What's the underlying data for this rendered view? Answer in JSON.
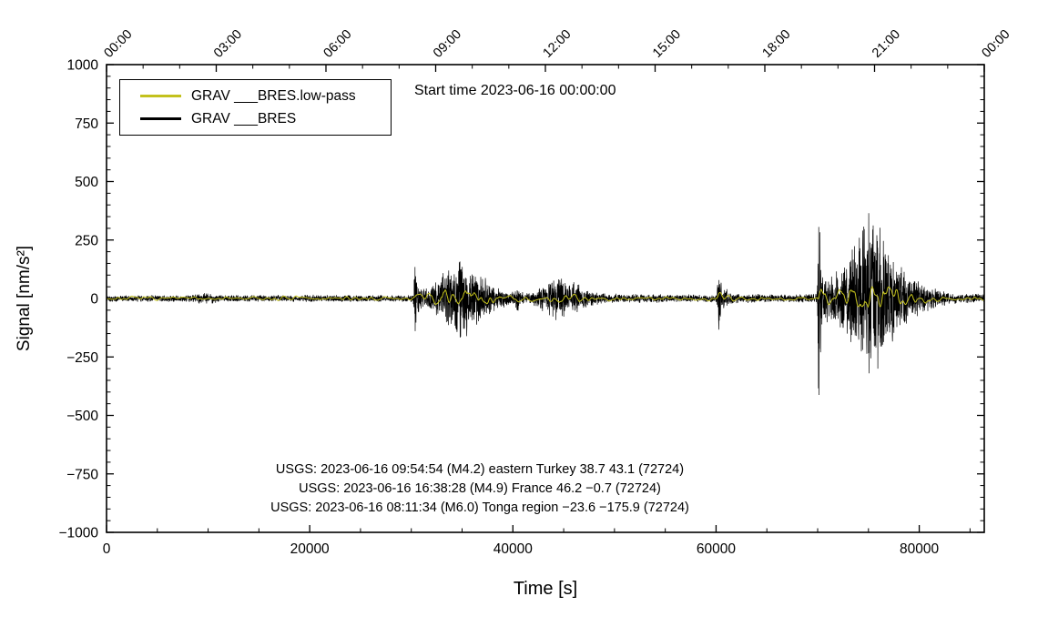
{
  "chart_data": {
    "type": "line",
    "title": "Start time 2023-06-16 00:00:00",
    "xlabel": "Time [s]",
    "ylabel": "Signal [nm/s²]",
    "xlim": [
      0,
      86400
    ],
    "ylim": [
      -1000,
      1000
    ],
    "grid": false,
    "legend_position": "upper-left",
    "x_ticks_bottom": [
      0,
      20000,
      40000,
      60000,
      80000
    ],
    "x_minor_step_bottom": 5000,
    "y_ticks": [
      -1000,
      -750,
      -500,
      -250,
      0,
      250,
      500,
      750,
      1000
    ],
    "y_minor_step": 50,
    "top_axis_ticks_seconds": [
      0,
      10800,
      21600,
      32400,
      43200,
      54000,
      64800,
      75600,
      86400
    ],
    "top_axis_labels": [
      "00:00",
      "03:00",
      "06:00",
      "09:00",
      "12:00",
      "15:00",
      "18:00",
      "21:00",
      "00:00"
    ],
    "top_axis_minor_step": 3600,
    "legend": [
      {
        "label": "GRAV ___BRES.low-pass",
        "color": "#c3c11d"
      },
      {
        "label": "GRAV ___BRES",
        "color": "#000000"
      }
    ],
    "series": [
      {
        "name": "GRAV ___BRES",
        "color": "#000000",
        "style": "broadband-noise",
        "envelope": [
          [
            0,
            16
          ],
          [
            8000,
            16
          ],
          [
            9500,
            24
          ],
          [
            10500,
            24
          ],
          [
            11500,
            16
          ],
          [
            19500,
            16
          ],
          [
            20000,
            20
          ],
          [
            20500,
            16
          ],
          [
            29900,
            16
          ],
          [
            30200,
            20
          ],
          [
            30350,
            230
          ],
          [
            30500,
            120
          ],
          [
            30800,
            55
          ],
          [
            31600,
            45
          ],
          [
            32400,
            80
          ],
          [
            33200,
            130
          ],
          [
            34200,
            170
          ],
          [
            34800,
            190
          ],
          [
            35600,
            170
          ],
          [
            36400,
            140
          ],
          [
            37200,
            100
          ],
          [
            38000,
            65
          ],
          [
            38800,
            45
          ],
          [
            39600,
            32
          ],
          [
            40200,
            28
          ],
          [
            40400,
            78
          ],
          [
            40600,
            40
          ],
          [
            41000,
            30
          ],
          [
            42000,
            34
          ],
          [
            42800,
            60
          ],
          [
            43600,
            90
          ],
          [
            44300,
            110
          ],
          [
            45000,
            100
          ],
          [
            45800,
            85
          ],
          [
            46600,
            60
          ],
          [
            47400,
            45
          ],
          [
            48200,
            32
          ],
          [
            49500,
            24
          ],
          [
            52000,
            20
          ],
          [
            58000,
            18
          ],
          [
            60000,
            18
          ],
          [
            60250,
            170
          ],
          [
            60500,
            90
          ],
          [
            60900,
            50
          ],
          [
            61500,
            28
          ],
          [
            62500,
            20
          ],
          [
            69700,
            20
          ],
          [
            69950,
            30
          ],
          [
            70150,
            680
          ],
          [
            70350,
            150
          ],
          [
            70700,
            110
          ],
          [
            71500,
            105
          ],
          [
            72300,
            140
          ],
          [
            73100,
            200
          ],
          [
            73900,
            280
          ],
          [
            74700,
            350
          ],
          [
            75300,
            400
          ],
          [
            75900,
            360
          ],
          [
            76500,
            300
          ],
          [
            77100,
            250
          ],
          [
            77700,
            195
          ],
          [
            78300,
            150
          ],
          [
            79100,
            110
          ],
          [
            79900,
            80
          ],
          [
            80700,
            60
          ],
          [
            81500,
            45
          ],
          [
            82500,
            32
          ],
          [
            84000,
            24
          ],
          [
            86400,
            20
          ]
        ]
      },
      {
        "name": "GRAV ___BRES.low-pass",
        "color": "#c3c11d",
        "style": "low-pass",
        "envelope": [
          [
            0,
            11
          ],
          [
            29900,
            11
          ],
          [
            30300,
            25
          ],
          [
            31000,
            35
          ],
          [
            32000,
            45
          ],
          [
            33000,
            60
          ],
          [
            34500,
            72
          ],
          [
            35500,
            70
          ],
          [
            36500,
            58
          ],
          [
            37500,
            45
          ],
          [
            38500,
            32
          ],
          [
            39500,
            20
          ],
          [
            41000,
            16
          ],
          [
            42500,
            24
          ],
          [
            43500,
            35
          ],
          [
            44500,
            45
          ],
          [
            45500,
            40
          ],
          [
            46500,
            30
          ],
          [
            47500,
            22
          ],
          [
            49000,
            15
          ],
          [
            55000,
            12
          ],
          [
            60000,
            12
          ],
          [
            60300,
            38
          ],
          [
            60800,
            28
          ],
          [
            61800,
            16
          ],
          [
            63000,
            12
          ],
          [
            69800,
            12
          ],
          [
            70150,
            85
          ],
          [
            70800,
            60
          ],
          [
            71800,
            55
          ],
          [
            72800,
            65
          ],
          [
            73800,
            80
          ],
          [
            74800,
            92
          ],
          [
            75800,
            95
          ],
          [
            76800,
            78
          ],
          [
            77800,
            62
          ],
          [
            78800,
            48
          ],
          [
            79800,
            36
          ],
          [
            81000,
            26
          ],
          [
            82500,
            18
          ],
          [
            84500,
            13
          ],
          [
            86400,
            12
          ]
        ]
      }
    ],
    "annotations": [
      "USGS: 2023-06-16 09:54:54 (M4.2) eastern Turkey 38.7 43.1 (72724)",
      "USGS: 2023-06-16 16:38:28 (M4.9) France 46.2 −0.7 (72724)",
      "USGS: 2023-06-16 08:11:34 (M6.0) Tonga region −23.6 −175.9 (72724)"
    ]
  }
}
